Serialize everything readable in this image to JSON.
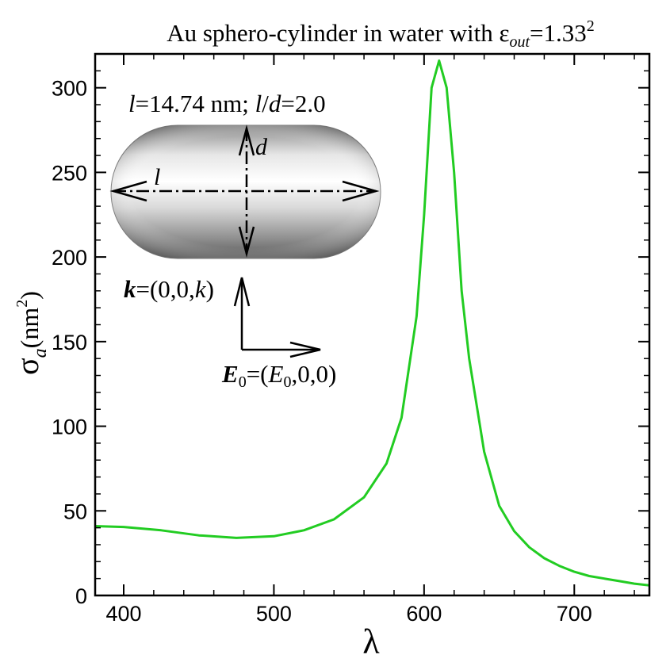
{
  "chart_data": {
    "type": "line",
    "title": {
      "main": "Au sphero-cylinder in water with ",
      "epsilon": "ε",
      "subscript": "out",
      "value": "=1.33",
      "superscript": "2"
    },
    "xlabel": "λ",
    "ylabel": {
      "symbol": "σ",
      "subscript": "a",
      "open": "(nm",
      "superscript": "2",
      "close": ")"
    },
    "xlim": [
      381,
      750
    ],
    "ylim": [
      0,
      320
    ],
    "xticks": [
      400,
      500,
      600,
      700
    ],
    "yticks": [
      0,
      50,
      100,
      150,
      200,
      250,
      300
    ],
    "grid": false,
    "line_color": "#22cc22",
    "series": [
      {
        "x": [
          381,
          400,
          425,
          450,
          475,
          500,
          520,
          540,
          560,
          575,
          585,
          595,
          600,
          605,
          610,
          615,
          620,
          625,
          630,
          640,
          650,
          660,
          670,
          680,
          690,
          700,
          710,
          720,
          730,
          740,
          750
        ],
        "y": [
          41,
          40.5,
          38.5,
          35.5,
          34,
          35,
          38.5,
          45,
          58,
          78,
          105,
          165,
          225,
          300,
          316,
          300,
          250,
          180,
          140,
          85,
          53,
          38,
          28.5,
          22,
          17.5,
          14,
          11.5,
          10,
          8.5,
          7,
          6
        ]
      }
    ],
    "annotations": {
      "dimensions": {
        "l_italic": "l",
        "l_value": "=14.74 nm; ",
        "ld_l": "l",
        "ld_slash": "/",
        "ld_d": "d",
        "ld_value": "=2.0"
      },
      "shape_labels": {
        "length": "l",
        "diameter": "d"
      },
      "k_vector": {
        "k_bold": "k",
        "prefix": "=(0,0,",
        "k_italic": "k",
        "suffix": ")"
      },
      "e_vector": {
        "E_bold": "E",
        "E_sub": "0",
        "middle": "=(",
        "E_italic": "E",
        "E_sub2": "0",
        "suffix": ",0,0)"
      }
    }
  }
}
